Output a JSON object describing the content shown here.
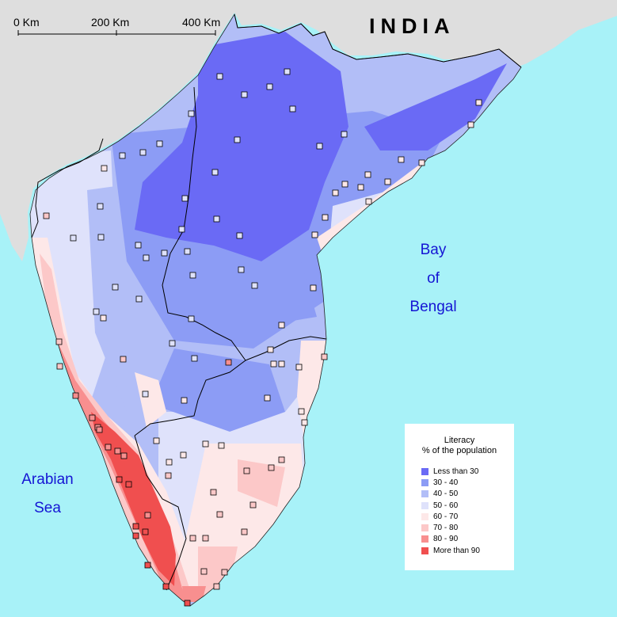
{
  "map": {
    "title": "INDIA",
    "water_labels": [
      {
        "name": "bay-of-bengal-label",
        "lines": [
          "Bay",
          "of",
          "Bengal"
        ]
      },
      {
        "name": "arabian-sea-label",
        "lines": [
          "Arabian",
          "Sea"
        ]
      }
    ],
    "scale_bar": {
      "labels": [
        "0 Km",
        "200 Km",
        "400 Km"
      ]
    },
    "legend": {
      "title_line1": "Literacy",
      "title_line2": "% of the population",
      "items": [
        {
          "label": "Less than 30",
          "color": "#6a6af5"
        },
        {
          "label": "30 - 40",
          "color": "#8c9cf5"
        },
        {
          "label": "40 - 50",
          "color": "#b2bef7"
        },
        {
          "label": "50 - 60",
          "color": "#dfe2fb"
        },
        {
          "label": "60 - 70",
          "color": "#fde8e8"
        },
        {
          "label": "70 - 80",
          "color": "#fcc8c8"
        },
        {
          "label": "80 - 90",
          "color": "#f88f8f"
        },
        {
          "label": "More than 90",
          "color": "#f04f4f"
        }
      ]
    },
    "colors": {
      "sea": "#a8f2f8",
      "outside_land": "#dedede",
      "border": "#000000",
      "label_blue": "#1515d4"
    }
  }
}
